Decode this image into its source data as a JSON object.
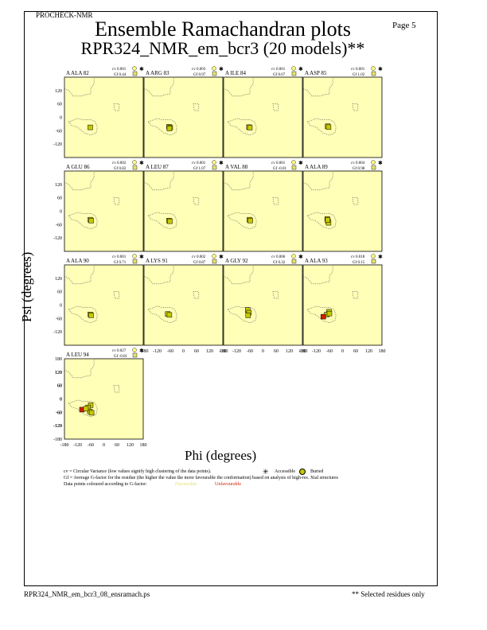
{
  "header": {
    "program": "PROCHECK-NMR",
    "page": "Page  5",
    "title": "Ensemble Ramachandran plots",
    "subtitle": "RPR324_NMR_em_bcr3 (20 models)**"
  },
  "axes": {
    "xlabel": "Phi (degrees)",
    "ylabel": "Psi (degrees)",
    "ticks": [
      "-180",
      "-120",
      "-60",
      "0",
      "60",
      "120",
      "180"
    ],
    "inner_yticks": [
      "120",
      "60",
      "0",
      "-60",
      "-120"
    ]
  },
  "legend": {
    "cv_text": "cv = Circular Variance (low values signify high clustering of the data points).",
    "accessible": "Accessible",
    "buried": "Buried",
    "gf_text": "Gf = Average G-factor for the residue (the higher the value the more favourable the conformation) based on analysis of high-res. Xtal structures",
    "colour_text": "Data points coloured according to G-factor:",
    "favourable": "Favourable",
    "unfavourable": "Unfavourable"
  },
  "footer": {
    "file": "RPR324_NMR_em_bcr3_08_ensramach.ps",
    "note": "** Selected residues only"
  },
  "colors": {
    "panel_bg": "#ffffb8",
    "point": "#c8c800",
    "point_bad": "#d02000",
    "favourable": "#ffff80",
    "unfavourable": "#d02000"
  },
  "chart_data": {
    "type": "scatter",
    "xlim": [
      -180,
      180
    ],
    "ylim": [
      -180,
      180
    ],
    "panels": [
      {
        "residue": "A ALA 82",
        "cv": "cv 0.001",
        "gf": "Gf 0.44",
        "points": [
          [
            -62,
            -45
          ]
        ]
      },
      {
        "residue": "A ARG 83",
        "cv": "cv 0.003",
        "gf": "Gf 0.97",
        "points": [
          [
            -66,
            -42
          ],
          [
            -60,
            -46
          ],
          [
            -64,
            -50
          ]
        ]
      },
      {
        "residue": "A ILE 84",
        "cv": "cv 0.001",
        "gf": "Gf 0.67",
        "points": [
          [
            -64,
            -44
          ],
          [
            -60,
            -46
          ]
        ]
      },
      {
        "residue": "A ASP 85",
        "cv": "cv 0.001",
        "gf": "Gf 1.02",
        "points": [
          [
            -68,
            -40
          ],
          [
            -64,
            -44
          ]
        ]
      },
      {
        "residue": "A GLU 86",
        "cv": "cv 0.002",
        "gf": "Gf 0.82",
        "points": [
          [
            -62,
            -38
          ],
          [
            -58,
            -42
          ]
        ]
      },
      {
        "residue": "A LEU 87",
        "cv": "cv 0.001",
        "gf": "Gf 1.07",
        "points": [
          [
            -66,
            -42
          ],
          [
            -62,
            -45
          ]
        ]
      },
      {
        "residue": "A VAL 88",
        "cv": "cv 0.001",
        "gf": "Gf -0.01",
        "points": [
          [
            -62,
            -38
          ],
          [
            -58,
            -42
          ]
        ]
      },
      {
        "residue": "A ALA 89",
        "cv": "cv 0.004",
        "gf": "Gf 0.98",
        "points": [
          [
            -70,
            -35
          ],
          [
            -66,
            -45
          ],
          [
            -64,
            -52
          ],
          [
            -68,
            -40
          ]
        ]
      },
      {
        "residue": "A ALA 90",
        "cv": "cv 0.001",
        "gf": "Gf 0.71",
        "points": [
          [
            -62,
            -42
          ],
          [
            -58,
            -46
          ]
        ]
      },
      {
        "residue": "A LYS 91",
        "cv": "cv 0.002",
        "gf": "Gf 0.87",
        "points": [
          [
            -72,
            -40
          ],
          [
            -64,
            -44
          ]
        ]
      },
      {
        "residue": "A GLY 92",
        "cv": "cv 0.006",
        "gf": "Gf 0.32",
        "points": [
          [
            -70,
            -22
          ],
          [
            -64,
            -34
          ],
          [
            -68,
            -46
          ]
        ]
      },
      {
        "residue": "A ALA 93",
        "cv": "cv 0.018",
        "gf": "Gf 0.15",
        "points": [
          [
            -62,
            -30
          ],
          [
            -72,
            -42
          ],
          [
            -88,
            -52
          ],
          [
            -60,
            -38
          ]
        ]
      },
      {
        "residue": "A LEU 94",
        "cv": "cv 0.027",
        "gf": "Gf -0.01",
        "points": [
          [
            -60,
            -28
          ],
          [
            -72,
            -38
          ],
          [
            -100,
            -48
          ],
          [
            -64,
            -56
          ],
          [
            -82,
            -44
          ],
          [
            -56,
            -62
          ]
        ]
      }
    ]
  }
}
